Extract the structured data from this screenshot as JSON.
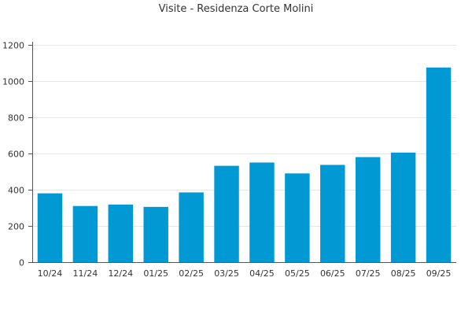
{
  "chart_data": {
    "type": "bar",
    "title": "Visite - Residenza Corte Molini",
    "xlabel": "",
    "ylabel": "",
    "categories": [
      "10/24",
      "11/24",
      "12/24",
      "01/25",
      "02/25",
      "03/25",
      "04/25",
      "05/25",
      "06/25",
      "07/25",
      "08/25",
      "09/25"
    ],
    "values": [
      380,
      310,
      318,
      305,
      385,
      532,
      550,
      490,
      537,
      580,
      605,
      1075
    ],
    "ylim": [
      0,
      1200
    ],
    "yticks": [
      0,
      200,
      400,
      600,
      800,
      1000,
      1200
    ],
    "grid": true,
    "legend": "none",
    "colors": {
      "bar": "#0199d4",
      "grid": "#e6e6e6",
      "axis": "#555555",
      "text": "#333333"
    }
  }
}
